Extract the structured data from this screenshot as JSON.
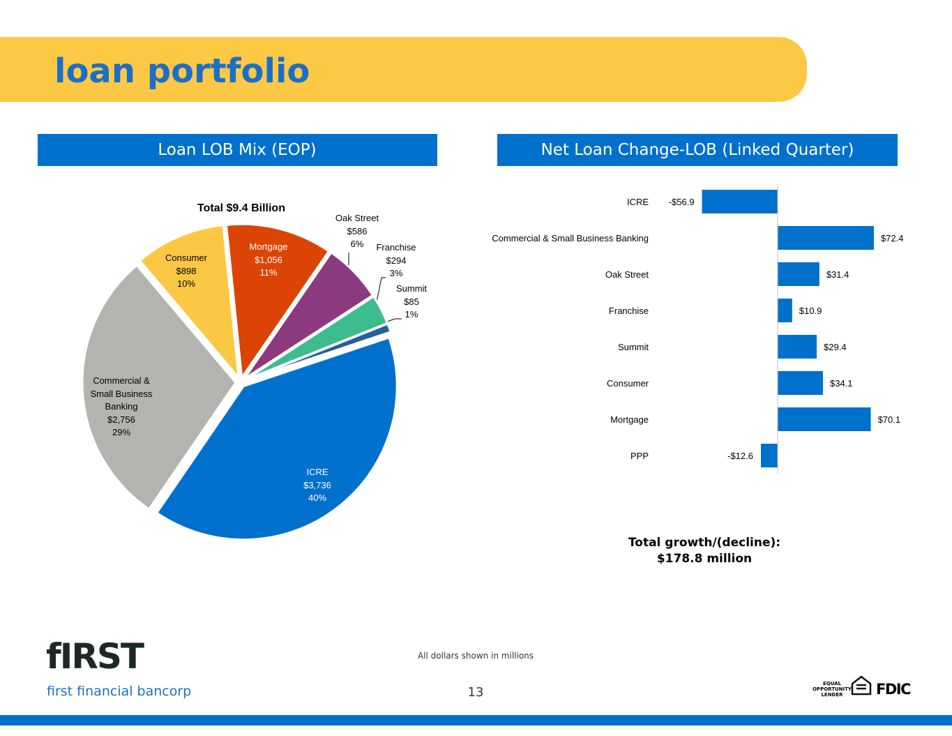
{
  "title": "loan portfolio",
  "chart_data": [
    {
      "type": "pie",
      "title": "Loan LOB Mix (EOP)",
      "subtitle": "Total $9.4 Billion",
      "categories": [
        "ICRE",
        "Commercial & Small Business Banking",
        "Consumer",
        "Mortgage",
        "Oak Street",
        "Franchise",
        "Summit"
      ],
      "values": [
        3736,
        2756,
        898,
        1056,
        586,
        294,
        85
      ],
      "value_labels": [
        "$3,736",
        "$2,756",
        "$898",
        "$1,056",
        "$586",
        "$294",
        "$85"
      ],
      "shares": [
        40,
        29,
        10,
        11,
        6,
        3,
        1
      ],
      "share_labels": [
        "40%",
        "29%",
        "10%",
        "11%",
        "6%",
        "3%",
        "1%"
      ],
      "colors": [
        "#0070cd",
        "#b3b3b0",
        "#fcc844",
        "#dc4405",
        "#8b3a80",
        "#3dbc8f",
        "#2a5d9a"
      ]
    },
    {
      "type": "hbar",
      "title": "Net Loan Change-LOB (Linked Quarter)",
      "categories": [
        "ICRE",
        "Commercial & Small Business Banking",
        "Oak Street",
        "Franchise",
        "Summit",
        "Consumer",
        "Mortgage",
        "PPP"
      ],
      "values": [
        -56.9,
        72.4,
        31.4,
        10.9,
        29.4,
        34.1,
        70.1,
        -12.6
      ],
      "value_labels": [
        "-$56.9",
        "$72.4",
        "$31.4",
        "$10.9",
        "$29.4",
        "$34.1",
        "$70.1",
        "-$12.6"
      ],
      "color": "#0070cd",
      "xlim": [
        -90,
        90
      ],
      "annotation": [
        "Total growth/(decline):",
        "$178.8 million"
      ]
    }
  ],
  "footer": {
    "note": "All dollars shown in millions",
    "page": 13,
    "logo_mark": "fIRST",
    "logo_name": "first financial bancorp",
    "badge_1": [
      "EQUAL",
      "OPPORTUNITY",
      "LENDER"
    ],
    "badge_2": "FDIC"
  }
}
